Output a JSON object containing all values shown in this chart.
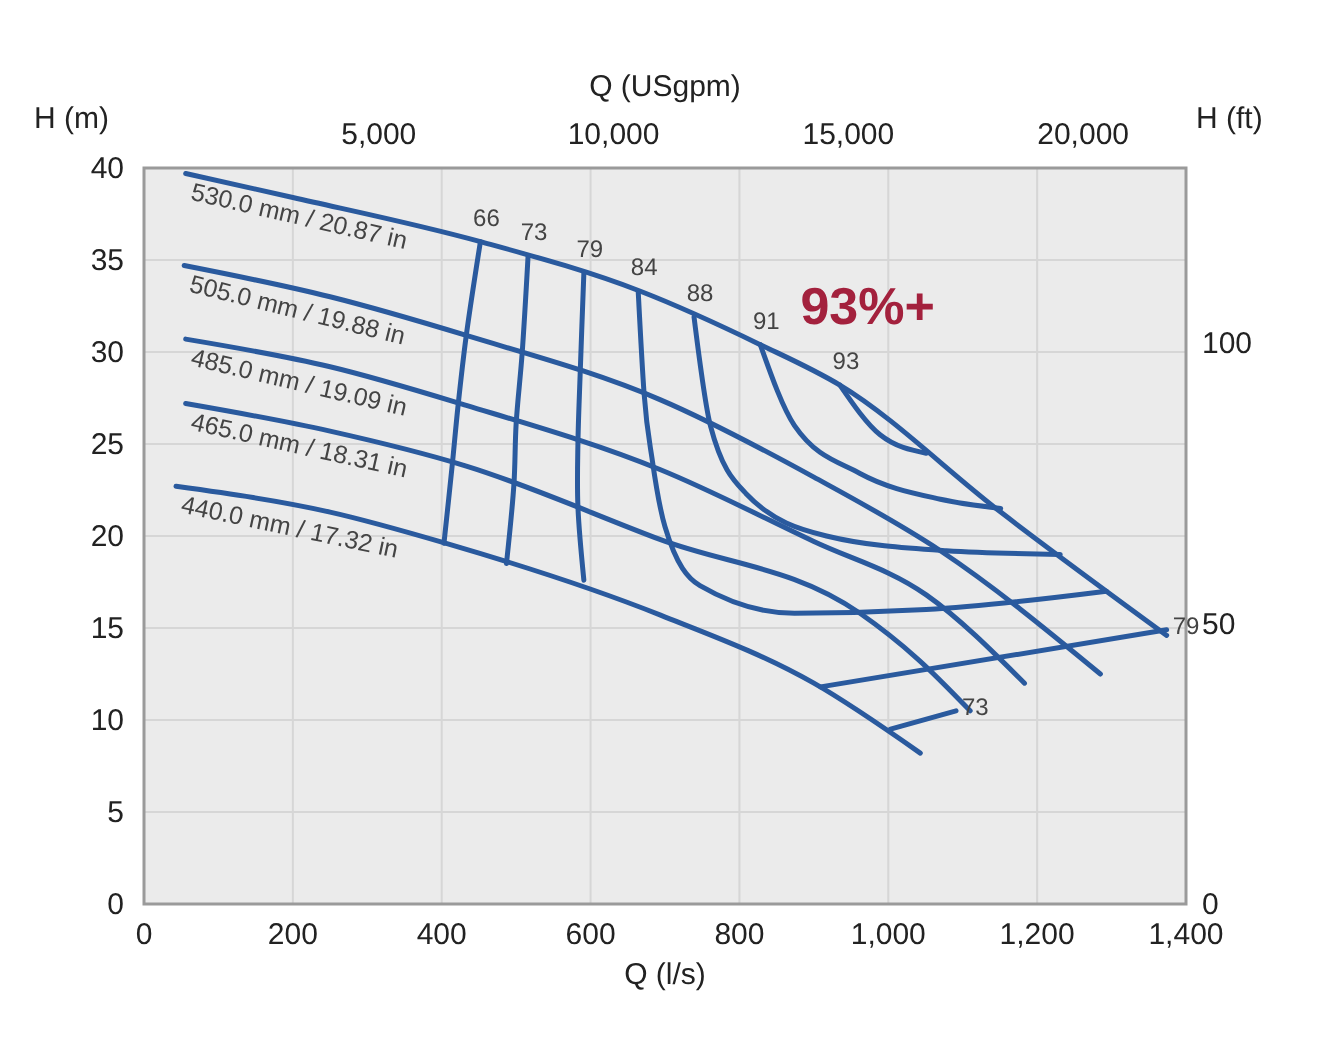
{
  "chart_data": {
    "type": "line",
    "xlabel": "Q (l/s)",
    "x2label": "Q (USgpm)",
    "ylabel": "H (m)",
    "y2label": "H (ft)",
    "xlim": [
      0,
      1400
    ],
    "xticks": [
      0,
      200,
      400,
      600,
      800,
      {
        "value": 1000,
        "label": "1,000"
      },
      {
        "value": 1200,
        "label": "1,200"
      },
      {
        "value": 1400,
        "label": "1,400"
      }
    ],
    "ylim": [
      0,
      40
    ],
    "yticks": [
      0,
      5,
      10,
      15,
      20,
      25,
      30,
      35,
      40
    ],
    "x2lim": [
      0,
      22190
    ],
    "x2ticks": [
      {
        "value": 5000,
        "label": "5,000"
      },
      {
        "value": 10000,
        "label": "10,000"
      },
      {
        "value": 15000,
        "label": "15,000"
      },
      {
        "value": 20000,
        "label": "20,000"
      }
    ],
    "y2lim": [
      0,
      131.2
    ],
    "y2ticks": [
      0,
      50,
      100
    ],
    "grid": true,
    "line_style": "solid",
    "annotations": [
      "93%+"
    ],
    "series": [
      {
        "name": "530.0 mm / 20.87 in",
        "color": "#2a5a9e",
        "x": [
          56,
          200,
          452,
          667,
          828,
          935,
          1151,
          1374
        ],
        "values": [
          39.7,
          38.4,
          36.0,
          33.3,
          30.4,
          28.2,
          21.3,
          14.6
        ]
      },
      {
        "name": "505.0 mm / 19.88 in",
        "color": "#2a5a9e",
        "x": [
          54,
          250,
          433,
          694,
          900,
          1070,
          1285
        ],
        "values": [
          34.7,
          33.0,
          30.9,
          27.4,
          23.2,
          19.2,
          12.5
        ]
      },
      {
        "name": "485.0 mm / 19.09 in",
        "color": "#2a5a9e",
        "x": [
          56,
          250,
          433,
          694,
          900,
          1051,
          1183
        ],
        "values": [
          30.7,
          29.2,
          27.1,
          23.6,
          19.7,
          16.8,
          12.0
        ]
      },
      {
        "name": "465.0 mm / 18.31 in",
        "color": "#2a5a9e",
        "x": [
          56,
          250,
          433,
          694,
          962,
          1040,
          1110
        ],
        "values": [
          27.2,
          25.7,
          23.8,
          19.8,
          15.8,
          13.3,
          10.5
        ]
      },
      {
        "name": "440.0 mm / 17.32 in",
        "color": "#2a5a9e",
        "x": [
          43,
          250,
          406,
          694,
          900,
          1043
        ],
        "values": [
          22.7,
          21.3,
          19.6,
          15.7,
          12.0,
          8.2
        ]
      },
      {
        "name": "66",
        "color": "#2a5a9e",
        "x": [
          452,
          433,
          422,
          414,
          403
        ],
        "values": [
          36.0,
          30.9,
          27.1,
          23.8,
          19.6
        ]
      },
      {
        "name": "73",
        "color": "#2a5a9e",
        "x": [
          516,
          508,
          500,
          497,
          487
        ],
        "values": [
          35.2,
          29.9,
          26.1,
          22.8,
          18.5
        ]
      },
      {
        "name": "79",
        "color": "#2a5a9e",
        "x": [
          591,
          586,
          583,
          583,
          591
        ],
        "values": [
          34.3,
          28.8,
          25.0,
          21.6,
          17.6
        ]
      },
      {
        "name": "84",
        "color": "#2a5a9e",
        "x": [
          664,
          672,
          683,
          700,
          747,
          874,
          1051,
          1293
        ],
        "values": [
          33.3,
          27.7,
          24.1,
          20.5,
          17.3,
          15.8,
          16.0,
          17.0
        ]
      },
      {
        "name": "88",
        "color": "#2a5a9e",
        "x": [
          739,
          761,
          809,
          917,
          1078,
          1231
        ],
        "values": [
          31.9,
          26.0,
          22.3,
          20.0,
          19.2,
          19.0
        ]
      },
      {
        "name": "91",
        "color": "#2a5a9e",
        "x": [
          828,
          874,
          962,
          1070,
          1151
        ],
        "values": [
          30.4,
          26.0,
          23.4,
          22.0,
          21.5
        ]
      },
      {
        "name": "93",
        "color": "#2a5a9e",
        "x": [
          935,
          989,
          1051
        ],
        "values": [
          28.2,
          25.5,
          24.5
        ]
      },
      {
        "name": "79",
        "color": "#2a5a9e",
        "x": [
          909,
          1374
        ],
        "values": [
          11.8,
          14.9
        ]
      },
      {
        "name": "73",
        "color": "#2a5a9e",
        "x": [
          1003,
          1091
        ],
        "values": [
          9.5,
          10.5
        ]
      }
    ]
  }
}
